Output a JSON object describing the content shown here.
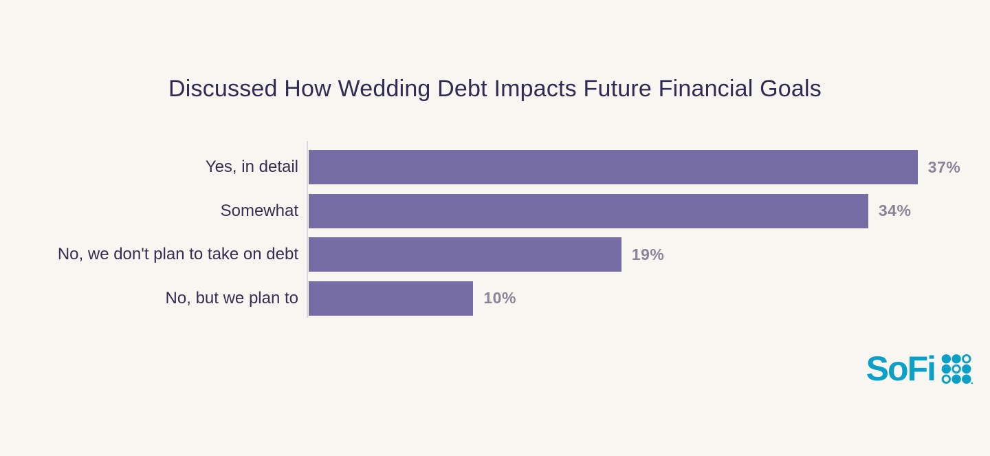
{
  "chart_data": {
    "type": "bar",
    "orientation": "horizontal",
    "title": "Discussed How Wedding Debt Impacts Future Financial Goals",
    "categories": [
      "Yes, in detail",
      "Somewhat",
      "No, we don't plan to take on debt",
      "No, but we plan to"
    ],
    "values": [
      37,
      34,
      19,
      10
    ],
    "value_labels": [
      "37%",
      "34%",
      "19%",
      "10%"
    ],
    "xlabel": "",
    "ylabel": "",
    "xlim": [
      0,
      41.4
    ],
    "grid": false,
    "legend": false,
    "colors": {
      "background": "#F8F6F0",
      "bar": "#766CA6",
      "title": "#302B52",
      "category_label": "#332E52",
      "value_label": "#8B8499",
      "axis_line": "#DAD8DC"
    }
  },
  "logo": {
    "text": "SoFi",
    "color": "#0CA0C7",
    "dots_pattern": [
      [
        "filled",
        "filled",
        "outline"
      ],
      [
        "filled",
        "outline",
        "filled"
      ],
      [
        "outline",
        "filled",
        "filled"
      ]
    ],
    "trademark_dot": true
  }
}
